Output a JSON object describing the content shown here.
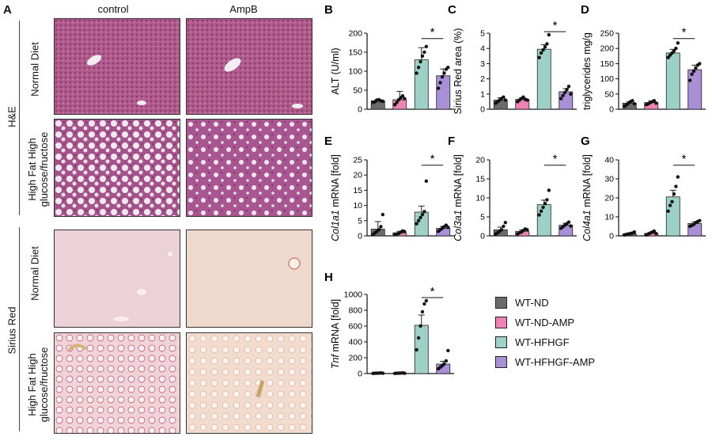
{
  "figure": {
    "panel_a": {
      "letter": "A",
      "columns": [
        "control",
        "AmpB"
      ],
      "stains": [
        "H&E",
        "Sirius Red"
      ],
      "diet_normal": "Normal Diet",
      "diet_hfhg_line1": "High Fat High",
      "diet_hfhg_line2": "glucose/fructose"
    },
    "legend": [
      {
        "name": "WT-ND",
        "color": "#6b6b6b"
      },
      {
        "name": "WT-ND-AMP",
        "color": "#ee82b4"
      },
      {
        "name": "WT-HFHGF",
        "color": "#9dd1c8"
      },
      {
        "name": "WT-HFHGF-AMP",
        "color": "#a98fd6"
      }
    ],
    "significance_mark": "*"
  },
  "chart_data": [
    {
      "id": "B",
      "type": "bar",
      "ylabel": "ALT (U/ml)",
      "ylabel_italic": "",
      "ylim": [
        0,
        200
      ],
      "yticks": [
        0,
        50,
        100,
        150,
        200
      ],
      "categories": [
        "WT-ND",
        "WT-ND-AMP",
        "WT-HFHGF",
        "WT-HFHGF-AMP"
      ],
      "values": [
        22,
        25,
        130,
        88
      ],
      "errors": [
        4,
        22,
        32,
        18
      ],
      "points": [
        [
          18,
          20,
          24,
          25,
          22,
          21
        ],
        [
          12,
          18,
          25,
          30,
          35,
          28
        ],
        [
          95,
          110,
          125,
          140,
          150,
          165
        ],
        [
          55,
          70,
          85,
          95,
          105,
          110
        ]
      ],
      "sig": [
        2,
        3
      ]
    },
    {
      "id": "C",
      "type": "bar",
      "ylabel": "Sirius Red area (%)",
      "ylabel_italic": "",
      "ylim": [
        0,
        5
      ],
      "yticks": [
        0,
        1,
        2,
        3,
        4,
        5
      ],
      "categories": [
        "WT-ND",
        "WT-ND-AMP",
        "WT-HFHGF",
        "WT-HFHGF-AMP"
      ],
      "values": [
        0.6,
        0.65,
        3.95,
        1.15
      ],
      "errors": [
        0.15,
        0.1,
        0.3,
        0.2
      ],
      "points": [
        [
          0.4,
          0.5,
          0.6,
          0.7,
          0.8,
          0.6
        ],
        [
          0.5,
          0.6,
          0.7,
          0.8,
          0.65,
          0.6
        ],
        [
          3.4,
          3.7,
          3.9,
          4.1,
          4.3,
          4.9
        ],
        [
          0.7,
          0.9,
          1.1,
          1.3,
          1.5,
          1.0
        ]
      ],
      "sig": [
        2,
        3
      ]
    },
    {
      "id": "D",
      "type": "bar",
      "ylabel": "triglycerides mg/g",
      "ylabel_italic": "",
      "ylim": [
        0,
        250
      ],
      "yticks": [
        0,
        50,
        100,
        150,
        200,
        250
      ],
      "categories": [
        "WT-ND",
        "WT-ND-AMP",
        "WT-HFHGF",
        "WT-HFHGF-AMP"
      ],
      "values": [
        20,
        22,
        185,
        130
      ],
      "errors": [
        5,
        5,
        12,
        15
      ],
      "points": [
        [
          10,
          15,
          20,
          25,
          28,
          18
        ],
        [
          15,
          18,
          22,
          25,
          28,
          20
        ],
        [
          170,
          178,
          185,
          192,
          200,
          218
        ],
        [
          95,
          115,
          125,
          135,
          145,
          150
        ]
      ],
      "sig": [
        2,
        3
      ]
    },
    {
      "id": "E",
      "type": "bar",
      "ylabel": " mRNA [fold]",
      "ylabel_italic": "Col1a1",
      "ylim": [
        0,
        25
      ],
      "yticks": [
        0,
        5,
        10,
        15,
        20,
        25
      ],
      "categories": [
        "WT-ND",
        "WT-ND-AMP",
        "WT-HFHGF",
        "WT-HFHGF-AMP"
      ],
      "values": [
        2.2,
        1.0,
        7.8,
        2.5
      ],
      "errors": [
        2.5,
        0.5,
        2.0,
        0.6
      ],
      "points": [
        [
          0.5,
          1,
          1.5,
          2,
          3,
          7
        ],
        [
          0.4,
          0.6,
          0.8,
          1.2,
          1.6,
          1.4
        ],
        [
          4,
          5,
          6,
          7,
          8,
          18
        ],
        [
          1.5,
          2,
          2.5,
          3,
          3.5,
          2.8
        ]
      ],
      "sig": [
        2,
        3
      ]
    },
    {
      "id": "F",
      "type": "bar",
      "ylabel": " mRNA [fold]",
      "ylabel_italic": "Col3a1",
      "ylim": [
        0,
        20
      ],
      "yticks": [
        0,
        5,
        10,
        15,
        20
      ],
      "categories": [
        "WT-ND",
        "WT-ND-AMP",
        "WT-HFHGF",
        "WT-HFHGF-AMP"
      ],
      "values": [
        1.6,
        1.2,
        8.2,
        2.8
      ],
      "errors": [
        0.7,
        0.4,
        1.2,
        0.5
      ],
      "points": [
        [
          0.5,
          0.8,
          1.2,
          1.6,
          2.5,
          3.5
        ],
        [
          0.5,
          0.8,
          1.0,
          1.4,
          1.8,
          1.6
        ],
        [
          5.5,
          6.5,
          7.5,
          8.5,
          9.5,
          12
        ],
        [
          2,
          2.4,
          2.8,
          3.2,
          3.6,
          2.6
        ]
      ],
      "sig": [
        2,
        3
      ]
    },
    {
      "id": "G",
      "type": "bar",
      "ylabel": " mRNA [fold]",
      "ylabel_italic": "Col4a1",
      "ylim": [
        0,
        40
      ],
      "yticks": [
        0,
        10,
        20,
        30,
        40
      ],
      "categories": [
        "WT-ND",
        "WT-ND-AMP",
        "WT-HFHGF",
        "WT-HFHGF-AMP"
      ],
      "values": [
        1.0,
        1.3,
        20.5,
        6.5
      ],
      "errors": [
        0.4,
        0.5,
        3.5,
        0.8
      ],
      "points": [
        [
          0.5,
          0.8,
          1,
          1.2,
          1.5,
          2
        ],
        [
          0.5,
          1,
          1.5,
          2,
          2.5,
          1.2
        ],
        [
          13,
          16,
          18,
          22,
          26,
          31
        ],
        [
          5,
          5.5,
          6,
          7,
          7.5,
          8
        ]
      ],
      "sig": [
        2,
        3
      ]
    },
    {
      "id": "H",
      "type": "bar",
      "ylabel": " mRNA [fold]",
      "ylabel_italic": "Tnf",
      "ylim": [
        0,
        1000
      ],
      "yticks": [
        0,
        200,
        400,
        600,
        800,
        1000
      ],
      "categories": [
        "WT-ND",
        "WT-ND-AMP",
        "WT-HFHGF",
        "WT-HFHGF-AMP"
      ],
      "values": [
        5,
        5,
        610,
        120
      ],
      "errors": [
        3,
        3,
        130,
        35
      ],
      "points": [
        [
          2,
          4,
          5,
          6,
          8,
          4
        ],
        [
          2,
          4,
          5,
          6,
          8,
          4
        ],
        [
          300,
          450,
          600,
          780,
          880,
          920
        ],
        [
          60,
          80,
          100,
          120,
          160,
          290
        ]
      ],
      "sig": [
        2,
        3
      ]
    }
  ]
}
